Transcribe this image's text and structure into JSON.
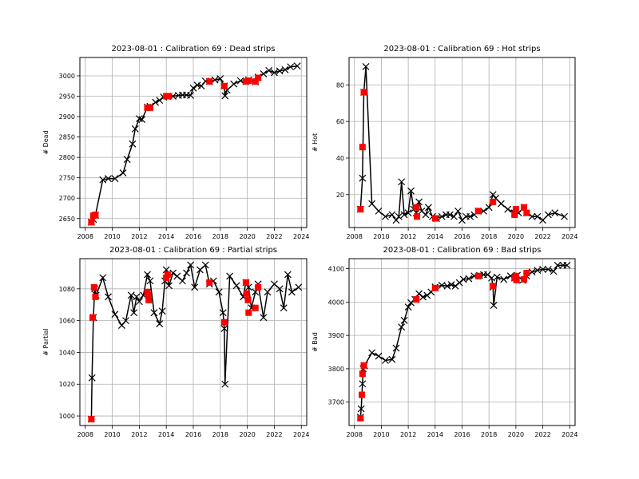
{
  "colors": {
    "line": "#000000",
    "highlight": "#ff0000",
    "grid": "#b0b0b0"
  },
  "chart_data": [
    {
      "type": "line",
      "title": "2023-08-01 : Calibration 69 : Dead strips",
      "ylabel": "# Dead",
      "xlim": [
        2007.6,
        2024.4
      ],
      "ylim": [
        2628,
        3045
      ],
      "xticks": [
        2008,
        2010,
        2012,
        2014,
        2016,
        2018,
        2020,
        2022,
        2024
      ],
      "yticks": [
        2650,
        2700,
        2750,
        2800,
        2850,
        2900,
        2950,
        3000
      ],
      "series": [
        {
          "name": "all",
          "x": [
            2008.45,
            2008.6,
            2008.75,
            2009.3,
            2009.7,
            2010.2,
            2010.8,
            2011.1,
            2011.5,
            2011.7,
            2012.0,
            2012.2,
            2012.6,
            2012.8,
            2013.2,
            2013.5,
            2013.8,
            2014.1,
            2014.5,
            2014.9,
            2015.2,
            2015.5,
            2015.8,
            2016.0,
            2016.3,
            2016.6,
            2016.9,
            2017.2,
            2017.6,
            2018.0,
            2018.3,
            2018.35,
            2018.5,
            2019.0,
            2019.5,
            2019.9,
            2020.1,
            2020.6,
            2020.8,
            2021.2,
            2021.6,
            2022.0,
            2022.4,
            2022.8,
            2023.2,
            2023.7
          ],
          "y": [
            2641,
            2648,
            2658,
            2745,
            2748,
            2748,
            2762,
            2795,
            2833,
            2870,
            2895,
            2893,
            2923,
            2925,
            2935,
            2940,
            2948,
            2950,
            2950,
            2952,
            2953,
            2953,
            2952,
            2970,
            2977,
            2975,
            2987,
            2986,
            2990,
            2993,
            2975,
            2951,
            2965,
            2980,
            2988,
            2986,
            2990,
            2985,
            2997,
            3005,
            3013,
            3008,
            3012,
            3015,
            3022,
            3024
          ]
        },
        {
          "name": "highlighted",
          "x": [
            2008.45,
            2008.6,
            2008.75,
            2012.6,
            2012.8,
            2014.0,
            2014.2,
            2017.2,
            2018.3,
            2019.9,
            2020.1,
            2020.6,
            2020.8
          ],
          "y": [
            2641,
            2657,
            2659,
            2922,
            2922,
            2950,
            2950,
            2986,
            2975,
            2986,
            2988,
            2986,
            2995
          ]
        }
      ]
    },
    {
      "type": "line",
      "title": "2023-08-01 : Calibration 69 : Hot strips",
      "ylabel": "# Hot",
      "xlim": [
        2007.6,
        2024.4
      ],
      "ylim": [
        2,
        95
      ],
      "xticks": [
        2008,
        2010,
        2012,
        2014,
        2016,
        2018,
        2020,
        2022,
        2024
      ],
      "yticks": [
        20,
        40,
        60,
        80
      ],
      "series": [
        {
          "name": "all",
          "x": [
            2008.45,
            2008.6,
            2008.7,
            2008.85,
            2009.3,
            2009.8,
            2010.3,
            2010.8,
            2011.1,
            2011.3,
            2011.5,
            2011.7,
            2012.0,
            2012.2,
            2012.4,
            2012.6,
            2012.8,
            2013.0,
            2013.3,
            2013.5,
            2013.8,
            2014.1,
            2014.5,
            2014.8,
            2015.1,
            2015.4,
            2015.7,
            2016.0,
            2016.3,
            2016.6,
            2016.9,
            2017.2,
            2017.6,
            2018.0,
            2018.3,
            2018.5,
            2018.9,
            2019.4,
            2019.9,
            2020.2,
            2020.6,
            2020.8,
            2021.2,
            2021.6,
            2022.0,
            2022.4,
            2022.9,
            2023.6
          ],
          "y": [
            12,
            29,
            76,
            90,
            15,
            11,
            8,
            9,
            6,
            8,
            27,
            9,
            10,
            22,
            12,
            10,
            16,
            11,
            9,
            13,
            8,
            7,
            8,
            9,
            9,
            8,
            11,
            6,
            8,
            8,
            9,
            11,
            11,
            13,
            20,
            18,
            15,
            12,
            10,
            10,
            13,
            10,
            8,
            8,
            6,
            9,
            10,
            8
          ]
        },
        {
          "name": "highlighted",
          "x": [
            2008.45,
            2008.6,
            2008.7,
            2012.6,
            2012.65,
            2014.0,
            2017.2,
            2018.3,
            2019.9,
            2020.0,
            2020.6,
            2020.8
          ],
          "y": [
            12,
            46,
            76,
            13,
            8,
            7,
            11,
            16,
            9,
            12,
            13,
            10
          ]
        }
      ]
    },
    {
      "type": "line",
      "title": "2023-08-01 : Calibration 69 : Partial strips",
      "ylabel": "# Partial",
      "xlim": [
        2007.6,
        2024.4
      ],
      "ylim": [
        994,
        1099
      ],
      "xticks": [
        2008,
        2010,
        2012,
        2014,
        2016,
        2018,
        2020,
        2022,
        2024
      ],
      "yticks": [
        1000,
        1020,
        1040,
        1060,
        1080
      ],
      "series": [
        {
          "name": "all",
          "x": [
            2008.45,
            2008.5,
            2008.6,
            2008.7,
            2008.8,
            2009.3,
            2009.7,
            2010.2,
            2010.7,
            2011.0,
            2011.4,
            2011.6,
            2011.8,
            2012.0,
            2012.3,
            2012.6,
            2012.8,
            2013.1,
            2013.5,
            2013.7,
            2013.9,
            2014.0,
            2014.2,
            2014.5,
            2014.8,
            2015.2,
            2015.5,
            2015.8,
            2016.1,
            2016.5,
            2016.9,
            2017.2,
            2017.5,
            2017.9,
            2018.2,
            2018.3,
            2018.35,
            2018.7,
            2019.2,
            2019.7,
            2019.9,
            2020.1,
            2020.3,
            2020.6,
            2020.8,
            2021.2,
            2021.5,
            2022.0,
            2022.4,
            2022.7,
            2023.0,
            2023.3,
            2023.8
          ],
          "y": [
            998,
            1024,
            1062,
            1080,
            1076,
            1087,
            1075,
            1064,
            1057,
            1060,
            1076,
            1065,
            1075,
            1072,
            1076,
            1089,
            1085,
            1065,
            1058,
            1066,
            1085,
            1092,
            1082,
            1090,
            1088,
            1085,
            1090,
            1095,
            1081,
            1092,
            1095,
            1083,
            1085,
            1078,
            1065,
            1055,
            1020,
            1088,
            1082,
            1075,
            1084,
            1081,
            1068,
            1078,
            1083,
            1062,
            1078,
            1083,
            1080,
            1068,
            1089,
            1078,
            1081
          ]
        },
        {
          "name": "highlighted",
          "x": [
            2008.45,
            2008.55,
            2008.65,
            2008.75,
            2012.6,
            2012.65,
            2012.7,
            2014.0,
            2014.1,
            2017.2,
            2018.3,
            2019.9,
            2019.95,
            2020.05,
            2020.1,
            2020.6,
            2020.8
          ],
          "y": [
            998,
            1062,
            1081,
            1075,
            1078,
            1076,
            1073,
            1087,
            1089,
            1084,
            1059,
            1084,
            1077,
            1073,
            1065,
            1068,
            1081
          ]
        }
      ]
    },
    {
      "type": "line",
      "title": "2023-08-01 : Calibration 69 : Bad strips",
      "ylabel": "# Bad",
      "xlim": [
        2007.6,
        2024.4
      ],
      "ylim": [
        3630,
        4130
      ],
      "xticks": [
        2008,
        2010,
        2012,
        2014,
        2016,
        2018,
        2020,
        2022,
        2024
      ],
      "yticks": [
        3700,
        3800,
        3900,
        4000,
        4100
      ],
      "series": [
        {
          "name": "all",
          "x": [
            2008.45,
            2008.5,
            2008.6,
            2008.65,
            2008.75,
            2009.3,
            2009.8,
            2010.3,
            2010.8,
            2011.1,
            2011.5,
            2011.7,
            2012.0,
            2012.2,
            2012.5,
            2012.8,
            2013.1,
            2013.4,
            2013.7,
            2014.0,
            2014.5,
            2014.9,
            2015.2,
            2015.5,
            2015.8,
            2016.1,
            2016.5,
            2016.9,
            2017.3,
            2017.6,
            2017.9,
            2018.2,
            2018.3,
            2018.35,
            2018.6,
            2019.1,
            2019.6,
            2019.9,
            2020.1,
            2020.5,
            2020.8,
            2021.2,
            2021.6,
            2022.0,
            2022.4,
            2022.8,
            2023.1,
            2023.5,
            2023.8
          ],
          "y": [
            3655,
            3680,
            3755,
            3800,
            3810,
            3848,
            3838,
            3825,
            3828,
            3862,
            3925,
            3945,
            3985,
            3998,
            4008,
            4025,
            4015,
            4020,
            4030,
            4045,
            4050,
            4048,
            4052,
            4048,
            4058,
            4068,
            4070,
            4078,
            4080,
            4082,
            4082,
            4072,
            4045,
            3990,
            4075,
            4068,
            4078,
            4072,
            4080,
            4065,
            4078,
            4090,
            4095,
            4098,
            4098,
            4092,
            4110,
            4110,
            4110
          ]
        },
        {
          "name": "highlighted",
          "x": [
            2008.45,
            2008.55,
            2008.6,
            2008.7,
            2012.6,
            2014.0,
            2017.2,
            2018.3,
            2019.9,
            2020.0,
            2020.05,
            2020.6,
            2020.8
          ],
          "y": [
            3652,
            3722,
            3785,
            3810,
            4008,
            4042,
            4078,
            4048,
            4072,
            4078,
            4066,
            4068,
            4087
          ]
        }
      ]
    }
  ]
}
